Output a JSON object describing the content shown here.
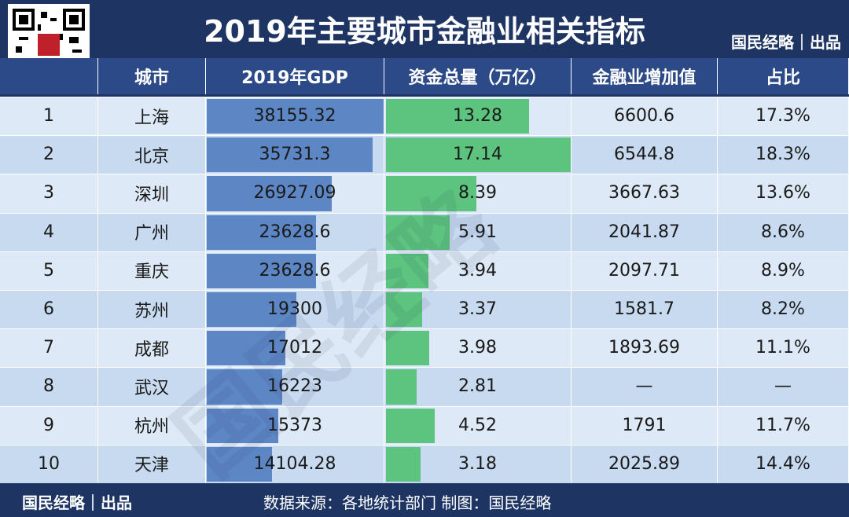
{
  "header": {
    "title": "2019年主要城市金融业相关指标",
    "brand": "国民经略｜出品"
  },
  "table": {
    "columns": [
      "城市",
      "2019年GDP",
      "资金总量（万亿）",
      "金融业增加值",
      "占比"
    ],
    "rows": [
      [
        1,
        "上海",
        38155.32,
        13.28,
        6600.6,
        "17.3%"
      ],
      [
        2,
        "北京",
        35731.3,
        17.14,
        6544.8,
        "18.3%"
      ],
      [
        3,
        "深圳",
        26927.09,
        8.39,
        3667.63,
        "13.6%"
      ],
      [
        4,
        "广州",
        23628.6,
        5.91,
        2041.87,
        "8.6%"
      ],
      [
        5,
        "重庆",
        23628.6,
        3.94,
        2097.71,
        "8.9%"
      ],
      [
        6,
        "苏州",
        19300,
        3.37,
        1581.7,
        "8.2%"
      ],
      [
        7,
        "成都",
        17012,
        3.98,
        1893.69,
        "11.1%"
      ],
      [
        8,
        "武汉",
        16223,
        2.81,
        "—",
        "—"
      ],
      [
        9,
        "杭州",
        15373,
        4.52,
        1791,
        "11.7%"
      ],
      [
        10,
        "天津",
        14104.28,
        3.18,
        2025.89,
        "14.4%"
      ]
    ]
  },
  "watermark": "国民经略",
  "footer": {
    "brand": "国民经略｜出品",
    "source": "数据来源：各地统计部门 制图：国民经略"
  }
}
